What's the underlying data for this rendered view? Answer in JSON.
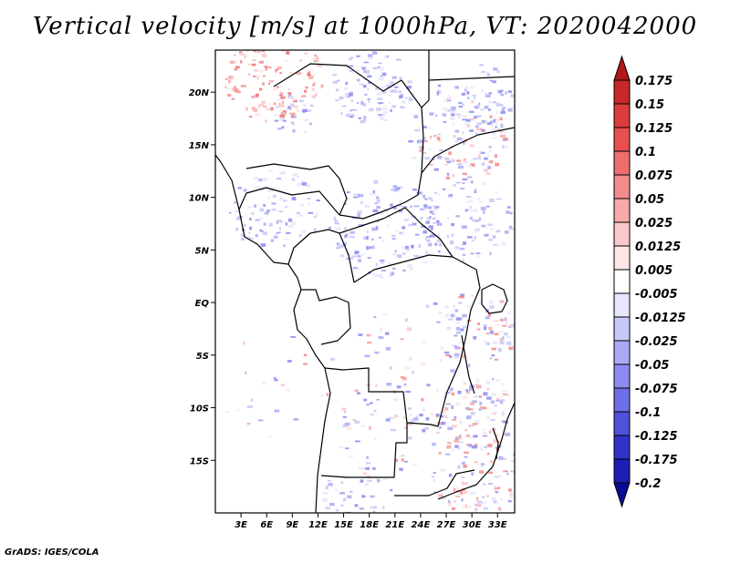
{
  "title": "Vertical velocity [m/s] at 1000hPa, VT: 2020042000",
  "credit": "GrADS: IGES/COLA",
  "map": {
    "lon_range": [
      0,
      35
    ],
    "lat_range": [
      -20,
      24
    ],
    "lat_ticks": [
      "20N",
      "15N",
      "10N",
      "5N",
      "EQ",
      "5S",
      "10S",
      "15S"
    ],
    "lat_tick_values": [
      20,
      15,
      10,
      5,
      0,
      -5,
      -10,
      -15
    ],
    "lon_ticks": [
      "3E",
      "6E",
      "9E",
      "12E",
      "15E",
      "18E",
      "21E",
      "24E",
      "27E",
      "30E",
      "33E"
    ],
    "lon_tick_values": [
      3,
      6,
      9,
      12,
      15,
      18,
      21,
      24,
      27,
      30,
      33
    ]
  },
  "colorbar": {
    "labels": [
      "0.175",
      "0.15",
      "0.125",
      "0.1",
      "0.075",
      "0.05",
      "0.025",
      "0.0125",
      "0.005",
      "-0.005",
      "-0.0125",
      "-0.025",
      "-0.05",
      "-0.075",
      "-0.1",
      "-0.125",
      "-0.175",
      "-0.2"
    ],
    "colors": [
      "#b01818",
      "#c82828",
      "#dc3c3c",
      "#e85050",
      "#ee6e6e",
      "#f28c8c",
      "#f6aaaa",
      "#fac8c8",
      "#fde6e6",
      "#ffffff",
      "#e6e6fc",
      "#c8c8f8",
      "#aaaaf4",
      "#8c8cf0",
      "#6e6ee6",
      "#5050dc",
      "#3232c8",
      "#1e1eb4",
      "#0a0a96"
    ]
  }
}
